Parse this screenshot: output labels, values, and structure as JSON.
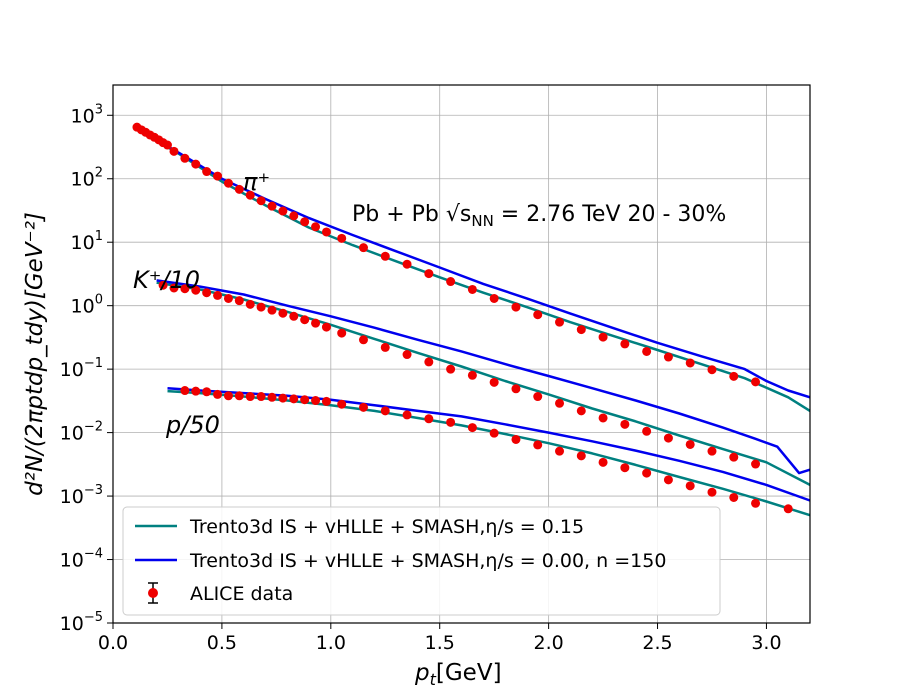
{
  "chart_data": {
    "type": "line",
    "xlabel_main": "p",
    "xlabel_sub": "t",
    "xlabel_unit": "[GeV]",
    "ylabel": "d²N/(2πptdp_tdy)[GeV⁻²]",
    "xlim": [
      0.0,
      3.2
    ],
    "ylim": [
      1e-05,
      3000
    ],
    "yscale": "log",
    "grid": true,
    "legend_placement": "lower-left",
    "x_ticks": [
      0.0,
      0.5,
      1.0,
      1.5,
      2.0,
      2.5,
      3.0
    ],
    "x_tick_labels": [
      "0.0",
      "0.5",
      "1.0",
      "1.5",
      "2.0",
      "2.5",
      "3.0"
    ],
    "y_ticks": [
      -5,
      -4,
      -3,
      -2,
      -1,
      0,
      1,
      2,
      3
    ],
    "y_tick_labels": [
      "10",
      "10",
      "10",
      "10",
      "10",
      "10",
      "10",
      "10",
      "10"
    ],
    "y_tick_exponents": [
      "−5",
      "−4",
      "−3",
      "−2",
      "−1",
      "0",
      "1",
      "2",
      "3"
    ],
    "annotations": {
      "pi": "π⁺",
      "kaon": "K⁺/10",
      "proton": "p/50",
      "system": "Pb + Pb √s",
      "system_sub": "NN",
      "system_rest": " = 2.76 TeV 20 - 30%"
    },
    "legend": [
      {
        "label": "Trento3d IS + vHLLE + SMASH,η/s = 0.15",
        "color": "#008080",
        "kind": "line"
      },
      {
        "label": "Trento3d IS + vHLLE + SMASH,η/s = 0.00, n =150",
        "color": "#0000ee",
        "kind": "line"
      },
      {
        "label": "ALICE data",
        "color": "#ee0000",
        "kind": "marker"
      }
    ],
    "series": [
      {
        "name": "Trento3d IS + vHLLE + SMASH,η/s = 0.15",
        "particle": "pi",
        "color": "#008080",
        "x": [
          0.1,
          0.3,
          0.5,
          0.7,
          0.9,
          1.1,
          1.3,
          1.5,
          1.7,
          1.9,
          2.1,
          2.3,
          2.5,
          2.7,
          2.9,
          3.1,
          3.2
        ],
        "y": [
          650,
          250,
          90,
          38,
          17,
          9,
          5,
          2.8,
          1.6,
          0.95,
          0.55,
          0.33,
          0.2,
          0.12,
          0.072,
          0.036,
          0.022
        ]
      },
      {
        "name": "Trento3d IS + vHLLE + SMASH,η/s = 0.00, n =150",
        "particle": "pi",
        "color": "#0000ee",
        "x": [
          0.1,
          0.3,
          0.5,
          0.7,
          0.9,
          1.1,
          1.3,
          1.5,
          1.7,
          1.9,
          2.1,
          2.3,
          2.5,
          2.7,
          2.9,
          3.0,
          3.1,
          3.2
        ],
        "y": [
          650,
          260,
          100,
          48,
          24,
          13,
          7.2,
          4,
          2.2,
          1.3,
          0.75,
          0.44,
          0.26,
          0.16,
          0.1,
          0.065,
          0.046,
          0.036
        ]
      },
      {
        "name": "Trento3d IS + vHLLE + SMASH,η/s = 0.15",
        "particle": "kaon",
        "color": "#008080",
        "x": [
          0.2,
          0.4,
          0.6,
          0.8,
          1.0,
          1.2,
          1.4,
          1.6,
          1.8,
          2.0,
          2.2,
          2.4,
          2.6,
          2.8,
          3.0,
          3.2
        ],
        "y": [
          2.3,
          1.8,
          1.25,
          0.8,
          0.5,
          0.3,
          0.18,
          0.11,
          0.065,
          0.04,
          0.024,
          0.015,
          0.009,
          0.0055,
          0.0034,
          0.0015
        ]
      },
      {
        "name": "Trento3d IS + vHLLE + SMASH,η/s = 0.00, n =150",
        "particle": "kaon",
        "color": "#0000ee",
        "x": [
          0.2,
          0.4,
          0.6,
          0.8,
          1.0,
          1.2,
          1.4,
          1.6,
          1.8,
          2.0,
          2.2,
          2.4,
          2.6,
          2.8,
          2.95,
          3.05,
          3.15,
          3.2
        ],
        "y": [
          2.5,
          2.0,
          1.5,
          1.0,
          0.68,
          0.45,
          0.29,
          0.19,
          0.12,
          0.078,
          0.05,
          0.032,
          0.02,
          0.012,
          0.008,
          0.006,
          0.0023,
          0.0026
        ]
      },
      {
        "name": "Trento3d IS + vHLLE + SMASH,η/s = 0.15",
        "particle": "proton",
        "color": "#008080",
        "x": [
          0.25,
          0.4,
          0.6,
          0.8,
          1.0,
          1.2,
          1.4,
          1.6,
          1.8,
          2.0,
          2.2,
          2.4,
          2.6,
          2.8,
          3.0,
          3.2
        ],
        "y": [
          0.045,
          0.042,
          0.037,
          0.032,
          0.027,
          0.022,
          0.017,
          0.013,
          0.0095,
          0.0068,
          0.0047,
          0.0031,
          0.002,
          0.0013,
          0.00082,
          0.0005
        ]
      },
      {
        "name": "Trento3d IS + vHLLE + SMASH,η/s = 0.00, n =150",
        "particle": "proton",
        "color": "#0000ee",
        "x": [
          0.25,
          0.4,
          0.6,
          0.8,
          1.0,
          1.2,
          1.4,
          1.6,
          1.8,
          2.0,
          2.2,
          2.4,
          2.6,
          2.8,
          3.0,
          3.2
        ],
        "y": [
          0.05,
          0.046,
          0.042,
          0.038,
          0.033,
          0.027,
          0.022,
          0.018,
          0.0135,
          0.01,
          0.0073,
          0.0052,
          0.0036,
          0.0024,
          0.0015,
          0.00085
        ]
      },
      {
        "name": "ALICE data",
        "particle": "pi",
        "color": "#ee0000",
        "kind": "marker",
        "x": [
          0.11,
          0.13,
          0.15,
          0.17,
          0.19,
          0.21,
          0.23,
          0.25,
          0.28,
          0.33,
          0.38,
          0.43,
          0.48,
          0.53,
          0.58,
          0.63,
          0.68,
          0.73,
          0.78,
          0.83,
          0.88,
          0.93,
          0.98,
          1.05,
          1.15,
          1.25,
          1.35,
          1.45,
          1.55,
          1.65,
          1.75,
          1.85,
          1.95,
          2.05,
          2.15,
          2.25,
          2.35,
          2.45,
          2.55,
          2.65,
          2.75,
          2.85,
          2.95
        ],
        "y": [
          650,
          590,
          540,
          490,
          450,
          410,
          370,
          340,
          270,
          210,
          170,
          130,
          110,
          85,
          68,
          55,
          45,
          37,
          31,
          26,
          21,
          17.5,
          14.5,
          11.5,
          8.2,
          6.0,
          4.5,
          3.2,
          2.4,
          1.8,
          1.3,
          0.95,
          0.72,
          0.55,
          0.42,
          0.32,
          0.25,
          0.19,
          0.155,
          0.125,
          0.098,
          0.077,
          0.063
        ]
      },
      {
        "name": "ALICE data",
        "particle": "kaon",
        "color": "#ee0000",
        "kind": "marker",
        "x": [
          0.23,
          0.28,
          0.33,
          0.38,
          0.43,
          0.48,
          0.53,
          0.58,
          0.63,
          0.68,
          0.73,
          0.78,
          0.83,
          0.88,
          0.93,
          0.98,
          1.05,
          1.15,
          1.25,
          1.35,
          1.45,
          1.55,
          1.65,
          1.75,
          1.85,
          1.95,
          2.05,
          2.15,
          2.25,
          2.35,
          2.45,
          2.55,
          2.65,
          2.75,
          2.85,
          2.95
        ],
        "y": [
          2.1,
          1.9,
          1.85,
          1.75,
          1.6,
          1.45,
          1.3,
          1.2,
          1.05,
          0.95,
          0.85,
          0.76,
          0.68,
          0.6,
          0.53,
          0.46,
          0.37,
          0.29,
          0.22,
          0.17,
          0.13,
          0.1,
          0.08,
          0.062,
          0.049,
          0.037,
          0.029,
          0.022,
          0.017,
          0.0135,
          0.0105,
          0.0082,
          0.0065,
          0.0051,
          0.0041,
          0.0032
        ]
      },
      {
        "name": "ALICE data",
        "particle": "proton",
        "color": "#ee0000",
        "kind": "marker",
        "x": [
          0.33,
          0.38,
          0.43,
          0.48,
          0.53,
          0.58,
          0.63,
          0.68,
          0.73,
          0.78,
          0.83,
          0.88,
          0.93,
          0.98,
          1.05,
          1.15,
          1.25,
          1.35,
          1.45,
          1.55,
          1.65,
          1.75,
          1.85,
          1.95,
          2.05,
          2.15,
          2.25,
          2.35,
          2.45,
          2.55,
          2.65,
          2.75,
          2.85,
          2.95,
          3.1
        ],
        "y": [
          0.046,
          0.045,
          0.044,
          0.04,
          0.038,
          0.038,
          0.037,
          0.037,
          0.036,
          0.035,
          0.034,
          0.033,
          0.032,
          0.031,
          0.028,
          0.025,
          0.022,
          0.019,
          0.0165,
          0.0145,
          0.012,
          0.0098,
          0.0078,
          0.0064,
          0.0051,
          0.0043,
          0.0034,
          0.0028,
          0.0023,
          0.0018,
          0.00145,
          0.00115,
          0.00095,
          0.00077,
          0.00063
        ]
      }
    ]
  }
}
